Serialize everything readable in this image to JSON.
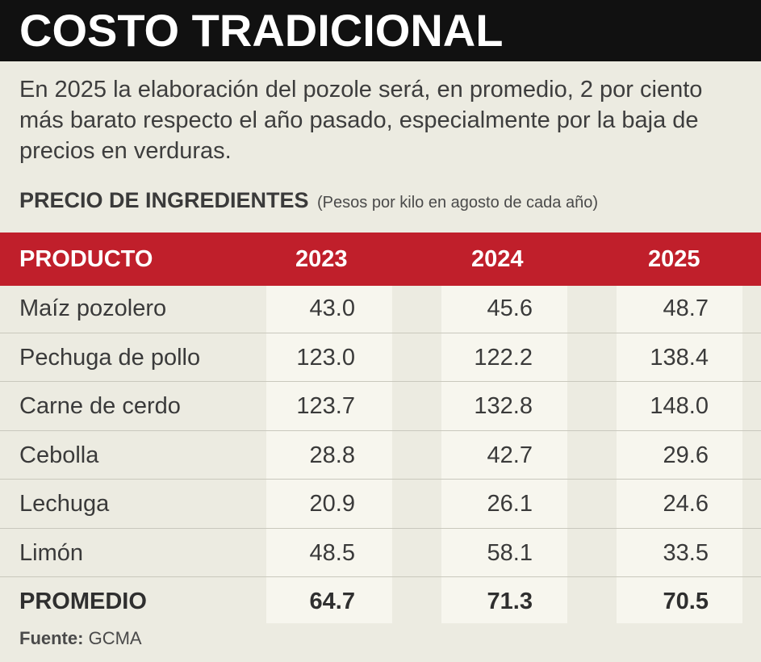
{
  "title": "COSTO TRADICIONAL",
  "intro": "En 2025 la elaboración del pozole será, en promedio, 2 por ciento más barato respecto el año pasado, especialmente por la baja de precios en verduras.",
  "subtitle": "PRECIO DE INGREDIENTES",
  "subtitle_note": "(Pesos por kilo en agosto de cada año)",
  "colors": {
    "header_red": "#c01f2b",
    "title_bg": "#111111",
    "page_bg": "#ecebe1",
    "column_bg": "#f7f6ee"
  },
  "chart_data": {
    "type": "table",
    "title": "PRECIO DE INGREDIENTES",
    "columns": [
      "PRODUCTO",
      "2023",
      "2024",
      "2025"
    ],
    "rows": [
      {
        "product": "Maíz pozolero",
        "values": [
          "43.0",
          "45.6",
          "48.7"
        ]
      },
      {
        "product": "Pechuga de pollo",
        "values": [
          "123.0",
          "122.2",
          "138.4"
        ]
      },
      {
        "product": "Carne de cerdo",
        "values": [
          "123.7",
          "132.8",
          "148.0"
        ]
      },
      {
        "product": "Cebolla",
        "values": [
          "28.8",
          "42.7",
          "29.6"
        ]
      },
      {
        "product": "Lechuga",
        "values": [
          "20.9",
          "26.1",
          "24.6"
        ]
      },
      {
        "product": "Limón",
        "values": [
          "48.5",
          "58.1",
          "33.5"
        ]
      }
    ],
    "average": {
      "product": "PROMEDIO",
      "values": [
        "64.7",
        "71.3",
        "70.5"
      ]
    }
  },
  "source_label": "Fuente:",
  "source_value": "GCMA"
}
